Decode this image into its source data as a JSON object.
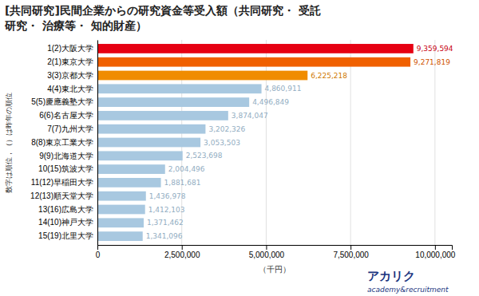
{
  "chart_data": {
    "type": "bar",
    "orientation": "horizontal",
    "title": [
      "[共同研究]民間企業からの研究資金等受入額（共同研究・ 受託",
      "研究・ 治療等・ 知的財産）"
    ],
    "categories": [
      "1(2)大阪大学",
      "2(1)東京大学",
      "3(3)京都大学",
      "4(4)東北大学",
      "5(5)慶應義塾大学",
      "6(6)名古屋大学",
      "7(7)九州大学",
      "8(8)東京工業大学",
      "9(9)北海道大学",
      "10(15)筑波大学",
      "11(12)早稲田大学",
      "12(13)順天堂大学",
      "13(16)広島大学",
      "14(10)神戸大学",
      "15(19)北里大学"
    ],
    "values": [
      9359594,
      9271819,
      6225218,
      4860911,
      4496849,
      3874047,
      3202326,
      3053503,
      2523698,
      2004496,
      1881681,
      1436978,
      1412103,
      1371462,
      1341096
    ],
    "value_labels": [
      "9,359,594",
      "9,271,819",
      "6,225,218",
      "4,860,911",
      "4,496,849",
      "3,874,047",
      "3,202,326",
      "3,053,503",
      "2,523,698",
      "2,004,496",
      "1,881,681",
      "1,436,978",
      "1,412,103",
      "1,371,462",
      "1,341,096"
    ],
    "colors": [
      "#e60012",
      "#f06000",
      "#f08c00",
      "#a8c8e0",
      "#a8c8e0",
      "#a8c8e0",
      "#a8c8e0",
      "#a8c8e0",
      "#a8c8e0",
      "#a8c8e0",
      "#a8c8e0",
      "#a8c8e0",
      "#a8c8e0",
      "#a8c8e0",
      "#a8c8e0"
    ],
    "data_labels": true,
    "x_label": "（千円）",
    "y_label": "数字は順位，（）は昨年の順位",
    "xlim": [
      0,
      10500000
    ],
    "xticks": [
      0,
      {
        "value": 2500000,
        "label": "2,500,000"
      },
      {
        "value": 5000000,
        "label": "5,000,000"
      },
      {
        "value": 7500000,
        "label": "7,500,000"
      },
      {
        "value": 10000000,
        "label": "10,000,000"
      }
    ],
    "grid": true,
    "annotations": [
      {
        "text": "アカリク",
        "color": "#1a3580"
      },
      {
        "text": "academy&recruitment",
        "color": "#1a3580"
      }
    ]
  }
}
